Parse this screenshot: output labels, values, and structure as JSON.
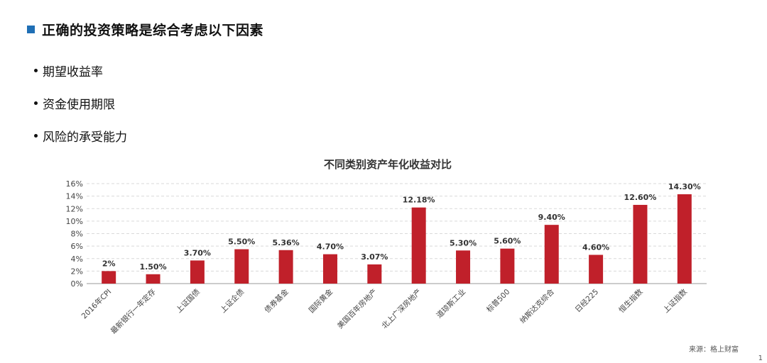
{
  "slide": {
    "title": "正确的投资策略是综合考虑以下因素",
    "bullets": [
      "期望收益率",
      "资金使用期限",
      "风险的承受能力"
    ],
    "source": "来源：格上财富",
    "page_number": "1",
    "accent_color": "#1f6fb5"
  },
  "chart_data": {
    "type": "bar",
    "title": "不同类别资产年化收益对比",
    "categories": [
      "2016年CPI",
      "最新银行一年定存",
      "上证国债",
      "上证企债",
      "债券基金",
      "国际黄金",
      "美国百年房地产",
      "北上广深房地产",
      "道琼斯工业",
      "标普500",
      "纳斯达克综合",
      "日经225",
      "恒生指数",
      "上证指数"
    ],
    "values": [
      2,
      1.5,
      3.7,
      5.5,
      5.36,
      4.7,
      3.07,
      12.18,
      5.3,
      5.6,
      9.4,
      4.6,
      12.6,
      14.3
    ],
    "value_labels": [
      "2%",
      "1.50%",
      "3.70%",
      "5.50%",
      "5.36%",
      "4.70%",
      "3.07%",
      "12.18%",
      "5.30%",
      "5.60%",
      "9.40%",
      "4.60%",
      "12.60%",
      "14.30%"
    ],
    "y_ticks": [
      "0%",
      "2%",
      "4%",
      "6%",
      "8%",
      "10%",
      "12%",
      "14%",
      "16%"
    ],
    "ylim": [
      0,
      16
    ],
    "bar_color": "#c0202a",
    "grid": true
  }
}
